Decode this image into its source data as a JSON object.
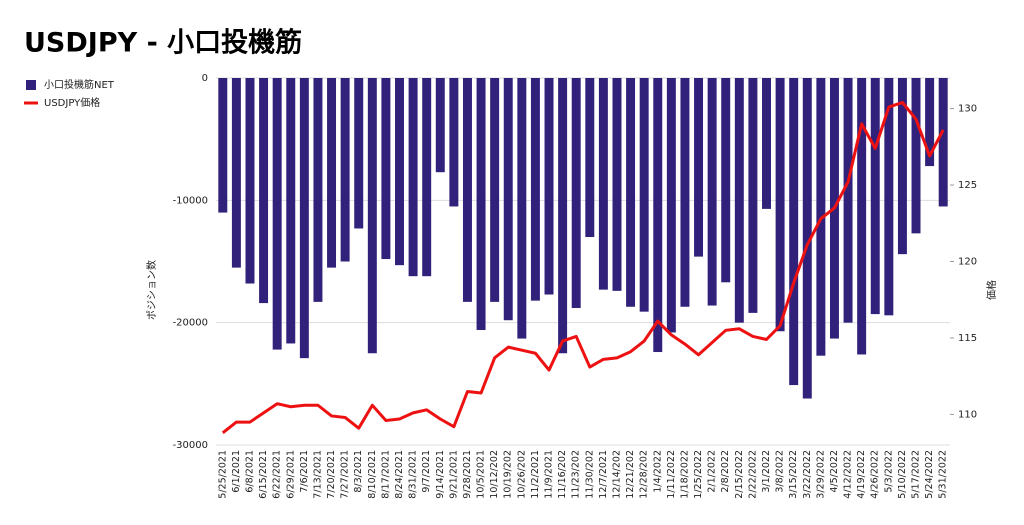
{
  "chart_data": {
    "type": "bar_line",
    "title": "USDJPY - 小口投機筋",
    "ylabel": "ポジション数",
    "y2label": "価格",
    "categories": [
      "5/25/2021",
      "6/1/2021",
      "6/8/2021",
      "6/15/2021",
      "6/22/2021",
      "6/29/2021",
      "7/6/2021",
      "7/13/2021",
      "7/20/2021",
      "7/27/2021",
      "8/3/2021",
      "8/10/2021",
      "8/17/2021",
      "8/24/2021",
      "8/31/2021",
      "9/7/2021",
      "9/14/2021",
      "9/21/2021",
      "9/28/2021",
      "10/5/2021",
      "10/12/202",
      "10/19/202",
      "10/26/202",
      "11/2/2021",
      "11/9/2021",
      "11/16/202",
      "11/23/202",
      "11/30/202",
      "12/7/2021",
      "12/14/202",
      "12/21/202",
      "12/28/202",
      "1/4/2022",
      "1/11/2022",
      "1/18/2022",
      "1/25/2022",
      "2/1/2022",
      "2/8/2022",
      "2/15/2022",
      "2/22/2022",
      "3/1/2022",
      "3/8/2022",
      "3/15/2022",
      "3/22/2022",
      "3/29/2022",
      "4/5/2022",
      "4/12/2022",
      "4/19/2022",
      "4/26/2022",
      "5/3/2022",
      "5/10/2022",
      "5/17/2022",
      "5/24/2022",
      "5/31/2022"
    ],
    "series": [
      {
        "name": "小口投機筋NET",
        "color": "#32217a",
        "kind": "bar",
        "values": [
          -11000,
          -15500,
          -16800,
          -18400,
          -22200,
          -21700,
          -22900,
          -18300,
          -15500,
          -15000,
          -12300,
          -22500,
          -14800,
          -15300,
          -16200,
          -16200,
          -7700,
          -10500,
          -18300,
          -20600,
          -18300,
          -19800,
          -21300,
          -18200,
          -17700,
          -22500,
          -18800,
          -13000,
          -17300,
          -17400,
          -18700,
          -19100,
          -22400,
          -20800,
          -18700,
          -14600,
          -18600,
          -16700,
          -20000,
          -19200,
          -10700,
          -20700,
          -25100,
          -26200,
          -22700,
          -21300,
          -20000,
          -22600,
          -19300,
          -19400,
          -14400,
          -12700,
          -7200,
          -10500
        ]
      },
      {
        "name": "USDJPY価格",
        "color": "#ee1111",
        "kind": "line",
        "axis": "y2",
        "values": [
          108.8,
          109.5,
          109.5,
          110.1,
          110.7,
          110.5,
          110.6,
          110.6,
          109.9,
          109.8,
          109.1,
          110.6,
          109.6,
          109.7,
          110.1,
          110.3,
          109.7,
          109.2,
          111.5,
          111.4,
          113.7,
          114.4,
          114.2,
          114.0,
          112.9,
          114.8,
          115.1,
          113.1,
          113.6,
          113.7,
          114.1,
          114.8,
          116.1,
          115.2,
          114.6,
          113.9,
          114.7,
          115.5,
          115.6,
          115.1,
          114.9,
          115.8,
          118.6,
          121.1,
          122.8,
          123.5,
          125.2,
          129.0,
          127.4,
          130.1,
          130.4,
          129.3,
          126.9,
          128.6
        ]
      }
    ],
    "ylim": [
      -30000,
      0
    ],
    "yticks": [
      0,
      -10000,
      -20000,
      -30000
    ],
    "y2lim": [
      108,
      132
    ],
    "y2ticks": [
      110,
      115,
      120,
      125,
      130
    ],
    "grid": true,
    "legend": "top-left"
  }
}
